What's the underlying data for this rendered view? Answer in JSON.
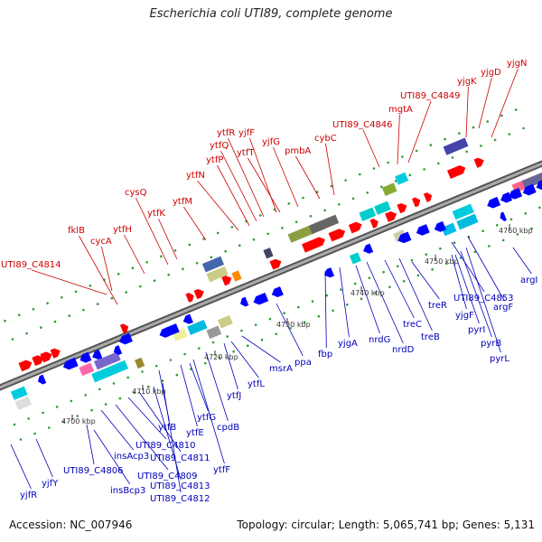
{
  "title": "Escherichia coli UTI89, complete genome",
  "footer": {
    "accession": "Accession: NC_007946",
    "stats": "Topology: circular; Length: 5,065,741 bp; Genes: 5,131"
  },
  "colors": {
    "forward_label": "#cc0000",
    "reverse_label": "#0000bb",
    "forward_arrow": "#ff0000",
    "reverse_arrow": "#0000ff",
    "backbone": "#888888",
    "dot": "#339933"
  },
  "ticks": [
    {
      "label": "4700 kbp"
    },
    {
      "label": "4710 kbp"
    },
    {
      "label": "4720 kbp"
    },
    {
      "label": "4730 kbp"
    },
    {
      "label": "4740 kbp"
    },
    {
      "label": "4750 kbp"
    },
    {
      "label": "4760 kbp"
    }
  ],
  "forward_genes": [
    "UTI89_C4814",
    "fklB",
    "cycA",
    "ytfH",
    "cysQ",
    "ytfK",
    "ytfM",
    "ytfN",
    "ytfP",
    "ytfQ",
    "ytfR",
    "ytfT",
    "yjfF",
    "yjfG",
    "pmbA",
    "cybC",
    "UTI89_C4846",
    "mgtA",
    "UTI89_C4849",
    "yjgK",
    "yjgD",
    "yjgN"
  ],
  "reverse_genes": [
    "yjfR",
    "yjfY",
    "UTI89_C4806",
    "insBcp3",
    "insAcp3",
    "UTI89_C4809",
    "UTI89_C4810",
    "UTI89_C4811",
    "UTI89_C4813",
    "UTI89_C4812",
    "ytfB",
    "ytfE",
    "ytfG",
    "ytfF",
    "cpdB",
    "ytfJ",
    "ytfL",
    "msrA",
    "ppa",
    "fbp",
    "yjgA",
    "nrdG",
    "nrdD",
    "treC",
    "treB",
    "treR",
    "UTI89_C4853",
    "argF",
    "yjgF",
    "pyrI",
    "pyrB",
    "pyrL",
    "argI"
  ]
}
